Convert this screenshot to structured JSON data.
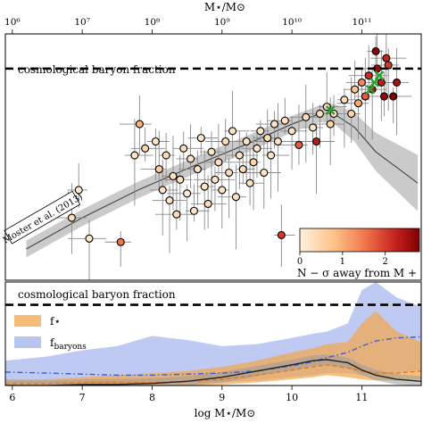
{
  "chart_data": [
    {
      "type": "scatter",
      "top_axis_label": "M⋆/M⊙",
      "top_axis_ticks": [
        "10⁶",
        "10⁷",
        "10⁸",
        "10⁹",
        "10¹⁰",
        "10¹¹"
      ],
      "xlim": [
        5.9,
        11.85
      ],
      "ylim_log": [
        -4.6,
        -1.05
      ],
      "yscale": "log",
      "baryon_fraction_label": "cosmological baryon fraction",
      "baryon_fraction_log": -1.55,
      "model_label": "Moster et al. (2013)",
      "colorbar": {
        "label": "N − σ away from M +",
        "ticks": [
          "0",
          "1",
          "2"
        ],
        "range": [
          0,
          2.8
        ],
        "colors": [
          "#fff1dd",
          "#fdbf86",
          "#f0744b",
          "#c5211d",
          "#7f0000"
        ]
      },
      "moster_relation": {
        "x": [
          6.2,
          7.0,
          7.8,
          8.6,
          9.4,
          10.0,
          10.4,
          10.6,
          10.9,
          11.2,
          11.6,
          11.8
        ],
        "y_log": [
          -4.15,
          -3.7,
          -3.3,
          -2.95,
          -2.62,
          -2.35,
          -2.2,
          -2.2,
          -2.4,
          -2.75,
          -3.05,
          -3.2
        ]
      },
      "points": [
        {
          "x": 6.8,
          "y": -3.45,
          "c": 0.6
        },
        {
          "x": 6.85,
          "y": -3.7,
          "c": 0.3
        },
        {
          "x": 6.95,
          "y": -3.3,
          "c": 0.1
        },
        {
          "x": 7.1,
          "y": -4.0,
          "c": 0.2
        },
        {
          "x": 7.55,
          "y": -4.05,
          "c": 1.4
        },
        {
          "x": 7.75,
          "y": -2.8,
          "c": 0.2
        },
        {
          "x": 7.82,
          "y": -2.35,
          "c": 0.8
        },
        {
          "x": 7.9,
          "y": -2.7,
          "c": 0.4
        },
        {
          "x": 8.05,
          "y": -2.6,
          "c": 0.2
        },
        {
          "x": 8.1,
          "y": -3.0,
          "c": 0.5
        },
        {
          "x": 8.15,
          "y": -3.3,
          "c": 0.2
        },
        {
          "x": 8.2,
          "y": -2.8,
          "c": 0.3
        },
        {
          "x": 8.25,
          "y": -3.45,
          "c": 0.2
        },
        {
          "x": 8.3,
          "y": -3.1,
          "c": 0.2
        },
        {
          "x": 8.35,
          "y": -3.65,
          "c": 0.3
        },
        {
          "x": 8.4,
          "y": -3.15,
          "c": 0.2
        },
        {
          "x": 8.45,
          "y": -2.7,
          "c": 0.3
        },
        {
          "x": 8.5,
          "y": -3.35,
          "c": 0.1
        },
        {
          "x": 8.55,
          "y": -2.85,
          "c": 0.2
        },
        {
          "x": 8.6,
          "y": -3.6,
          "c": 0.2
        },
        {
          "x": 8.65,
          "y": -3.0,
          "c": 0.2
        },
        {
          "x": 8.7,
          "y": -2.55,
          "c": 0.2
        },
        {
          "x": 8.75,
          "y": -3.25,
          "c": 0.2
        },
        {
          "x": 8.8,
          "y": -3.5,
          "c": 0.3
        },
        {
          "x": 8.85,
          "y": -2.75,
          "c": 0.2
        },
        {
          "x": 8.9,
          "y": -3.15,
          "c": 0.2
        },
        {
          "x": 8.95,
          "y": -2.9,
          "c": 0.3
        },
        {
          "x": 9.0,
          "y": -3.3,
          "c": 0.2
        },
        {
          "x": 9.05,
          "y": -2.6,
          "c": 0.3
        },
        {
          "x": 9.1,
          "y": -3.05,
          "c": 0.3
        },
        {
          "x": 9.15,
          "y": -2.45,
          "c": 0.2
        },
        {
          "x": 9.2,
          "y": -3.4,
          "c": 0.2
        },
        {
          "x": 9.25,
          "y": -2.8,
          "c": 0.2
        },
        {
          "x": 9.3,
          "y": -3.0,
          "c": 0.3
        },
        {
          "x": 9.35,
          "y": -2.6,
          "c": 0.2
        },
        {
          "x": 9.4,
          "y": -3.2,
          "c": 0.2
        },
        {
          "x": 9.45,
          "y": -2.9,
          "c": 0.4
        },
        {
          "x": 9.5,
          "y": -2.7,
          "c": 0.2
        },
        {
          "x": 9.55,
          "y": -2.45,
          "c": 0.2
        },
        {
          "x": 9.6,
          "y": -3.05,
          "c": 0.2
        },
        {
          "x": 9.65,
          "y": -2.55,
          "c": 0.3
        },
        {
          "x": 9.7,
          "y": -2.8,
          "c": 0.2
        },
        {
          "x": 9.75,
          "y": -2.35,
          "c": 0.2
        },
        {
          "x": 9.8,
          "y": -2.6,
          "c": 0.2
        },
        {
          "x": 9.85,
          "y": -3.95,
          "c": 1.9
        },
        {
          "x": 9.9,
          "y": -2.3,
          "c": 0.2
        },
        {
          "x": 10.0,
          "y": -2.45,
          "c": 0.2
        },
        {
          "x": 10.1,
          "y": -2.65,
          "c": 1.6
        },
        {
          "x": 10.2,
          "y": -2.25,
          "c": 0.3
        },
        {
          "x": 10.3,
          "y": -2.4,
          "c": 0.2
        },
        {
          "x": 10.35,
          "y": -2.6,
          "c": 2.2
        },
        {
          "x": 10.4,
          "y": -2.2,
          "c": 0.3
        },
        {
          "x": 10.5,
          "y": -2.1,
          "c": 0.3
        },
        {
          "x": 10.55,
          "y": -2.35,
          "c": 0.4
        },
        {
          "x": 10.6,
          "y": -2.2,
          "c": 0.2
        },
        {
          "x": 10.75,
          "y": -2.0,
          "c": 0.3
        },
        {
          "x": 10.85,
          "y": -2.2,
          "c": 0.4
        },
        {
          "x": 10.9,
          "y": -1.85,
          "c": 0.6
        },
        {
          "x": 10.95,
          "y": -2.05,
          "c": 0.9
        },
        {
          "x": 11.0,
          "y": -1.75,
          "c": 1.2
        },
        {
          "x": 11.05,
          "y": -1.95,
          "c": 1.6
        },
        {
          "x": 11.1,
          "y": -1.65,
          "c": 2.0
        },
        {
          "x": 11.15,
          "y": -1.85,
          "c": 2.3
        },
        {
          "x": 11.2,
          "y": -1.3,
          "c": 2.7
        },
        {
          "x": 11.22,
          "y": -1.55,
          "c": 2.5
        },
        {
          "x": 11.28,
          "y": -1.75,
          "c": 2.2
        },
        {
          "x": 11.32,
          "y": -1.95,
          "c": 2.6
        },
        {
          "x": 11.38,
          "y": -1.5,
          "c": 1.9
        },
        {
          "x": 11.45,
          "y": -1.95,
          "c": 2.8
        },
        {
          "x": 11.5,
          "y": -1.75,
          "c": 2.4
        },
        {
          "x": 11.35,
          "y": -1.4,
          "c": 2.1
        }
      ],
      "green_markers": [
        {
          "x": 10.55,
          "y": -2.15
        },
        {
          "x": 11.18,
          "y": -1.75
        },
        {
          "x": 11.25,
          "y": -1.65
        },
        {
          "x": 11.12,
          "y": -1.85
        }
      ]
    },
    {
      "type": "area",
      "xlabel": "log M⋆/M⊙",
      "x_ticks": [
        6,
        7,
        8,
        9,
        10,
        11
      ],
      "xlim": [
        5.9,
        11.85
      ],
      "ylim": [
        0,
        1.0
      ],
      "baryon_fraction_label": "cosmological baryon fraction",
      "baryon_fraction": 0.78,
      "legend": [
        {
          "name": "f⋆",
          "color": "#f4a54a"
        },
        {
          "name": "f_baryons",
          "color": "#7f96e6"
        }
      ],
      "x": [
        5.9,
        6.5,
        7.0,
        7.5,
        8.0,
        8.5,
        9.0,
        9.5,
        10.0,
        10.3,
        10.5,
        10.8,
        11.0,
        11.2,
        11.5,
        11.85
      ],
      "series": [
        {
          "name": "f⋆",
          "median": [
            0.02,
            0.02,
            0.03,
            0.03,
            0.03,
            0.04,
            0.06,
            0.1,
            0.15,
            0.18,
            0.2,
            0.17,
            0.14,
            0.12,
            0.12,
            0.14
          ],
          "lower": [
            0.0,
            0.0,
            0.0,
            0.0,
            0.0,
            0.0,
            0.01,
            0.03,
            0.06,
            0.08,
            0.1,
            0.08,
            0.06,
            0.05,
            0.05,
            0.06
          ],
          "upper": [
            0.06,
            0.06,
            0.08,
            0.1,
            0.12,
            0.14,
            0.18,
            0.24,
            0.32,
            0.36,
            0.4,
            0.42,
            0.6,
            0.72,
            0.52,
            0.42
          ]
        },
        {
          "name": "f_baryons",
          "median": [
            0.13,
            0.12,
            0.11,
            0.1,
            0.1,
            0.11,
            0.12,
            0.14,
            0.19,
            0.23,
            0.27,
            0.32,
            0.38,
            0.43,
            0.46,
            0.47
          ],
          "lower": [
            0.03,
            0.02,
            0.02,
            0.02,
            0.02,
            0.02,
            0.03,
            0.05,
            0.08,
            0.1,
            0.12,
            0.12,
            0.1,
            0.1,
            0.12,
            0.15
          ],
          "upper": [
            0.24,
            0.28,
            0.34,
            0.38,
            0.48,
            0.44,
            0.38,
            0.4,
            0.46,
            0.5,
            0.52,
            0.6,
            0.92,
            1.0,
            0.85,
            0.76
          ]
        },
        {
          "name": "model",
          "median": [
            0.0,
            0.0,
            0.01,
            0.01,
            0.02,
            0.04,
            0.08,
            0.14,
            0.2,
            0.24,
            0.25,
            0.22,
            0.15,
            0.1,
            0.06,
            0.04
          ]
        }
      ]
    }
  ]
}
